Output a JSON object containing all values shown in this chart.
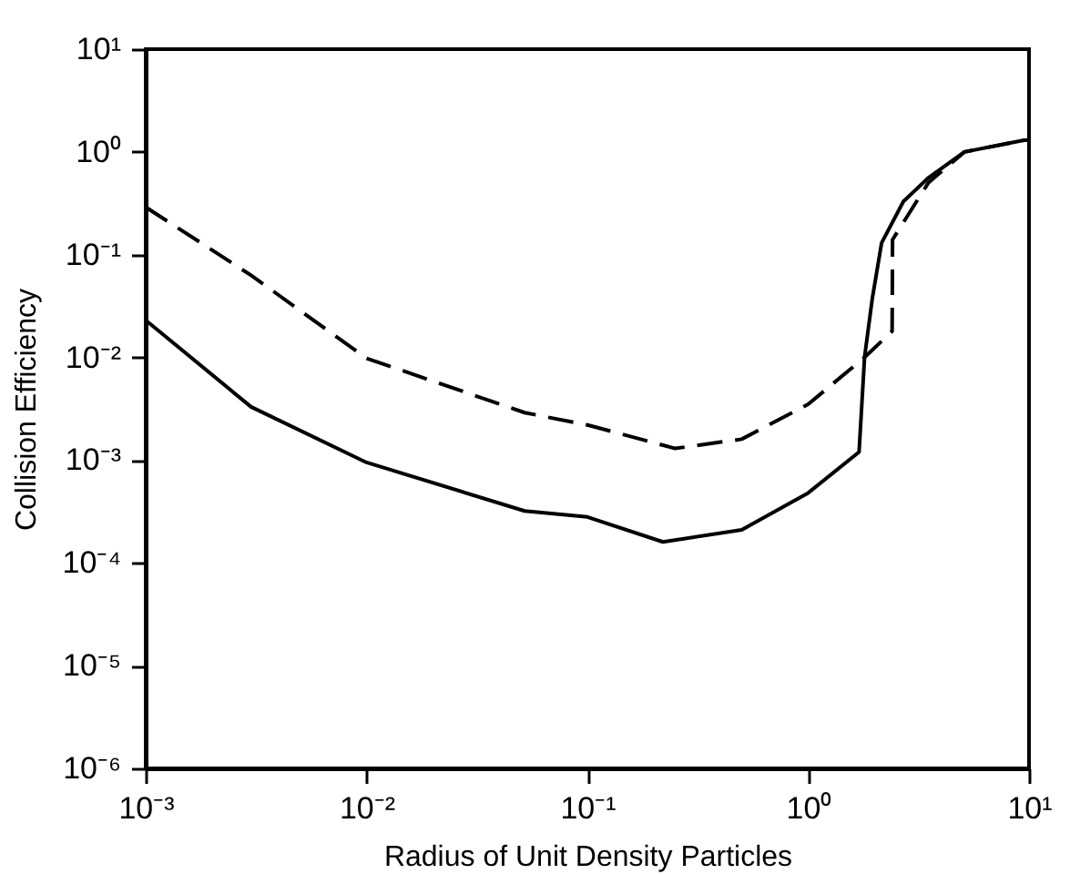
{
  "chart_data": {
    "type": "line",
    "xlabel": "Radius of Unit Density Particles",
    "ylabel": "Collision Efficiency",
    "log": "xy",
    "grid": false,
    "marker": "none",
    "xlim": [
      0.001,
      10
    ],
    "ylim": [
      1e-06,
      10
    ],
    "xticks": [
      {
        "value": 0.001,
        "label": "10⁻³"
      },
      {
        "value": 0.01,
        "label": "10⁻²"
      },
      {
        "value": 0.1,
        "label": "10⁻¹"
      },
      {
        "value": 1,
        "label": "10⁰"
      },
      {
        "value": 10,
        "label": "10¹"
      }
    ],
    "yticks": [
      {
        "value": 1e-06,
        "label": "10⁻⁶"
      },
      {
        "value": 1e-05,
        "label": "10⁻⁵"
      },
      {
        "value": 0.0001,
        "label": "10⁻⁴"
      },
      {
        "value": 0.001,
        "label": "10⁻³"
      },
      {
        "value": 0.01,
        "label": "10⁻²"
      },
      {
        "value": 0.1,
        "label": "10⁻¹"
      },
      {
        "value": 1,
        "label": "10⁰"
      },
      {
        "value": 10,
        "label": "10¹"
      }
    ],
    "series": [
      {
        "color": "#000000",
        "line_style": "solid",
        "x": [
          0.001,
          0.003,
          0.01,
          0.052,
          0.1,
          0.22,
          0.5,
          1,
          1.7,
          1.8,
          1.95,
          2.15,
          2.7,
          3.5,
          5.1,
          9.5,
          10
        ],
        "values": [
          0.023,
          0.0033,
          0.00095,
          0.00032,
          0.00028,
          0.00016,
          0.00021,
          0.00048,
          0.0012,
          0.01,
          0.037,
          0.13,
          0.33,
          0.56,
          1.0,
          1.3,
          1.3
        ]
      },
      {
        "color": "#000000",
        "line_style": "dashed",
        "x": [
          0.001,
          0.003,
          0.01,
          0.052,
          0.1,
          0.25,
          0.5,
          1,
          1.8,
          2.4,
          2.41,
          3.5,
          5.1,
          9.5,
          10
        ],
        "values": [
          0.29,
          0.063,
          0.0098,
          0.0029,
          0.0022,
          0.0013,
          0.0016,
          0.0035,
          0.01,
          0.018,
          0.14,
          0.5,
          1.0,
          1.3,
          1.3
        ]
      }
    ]
  }
}
